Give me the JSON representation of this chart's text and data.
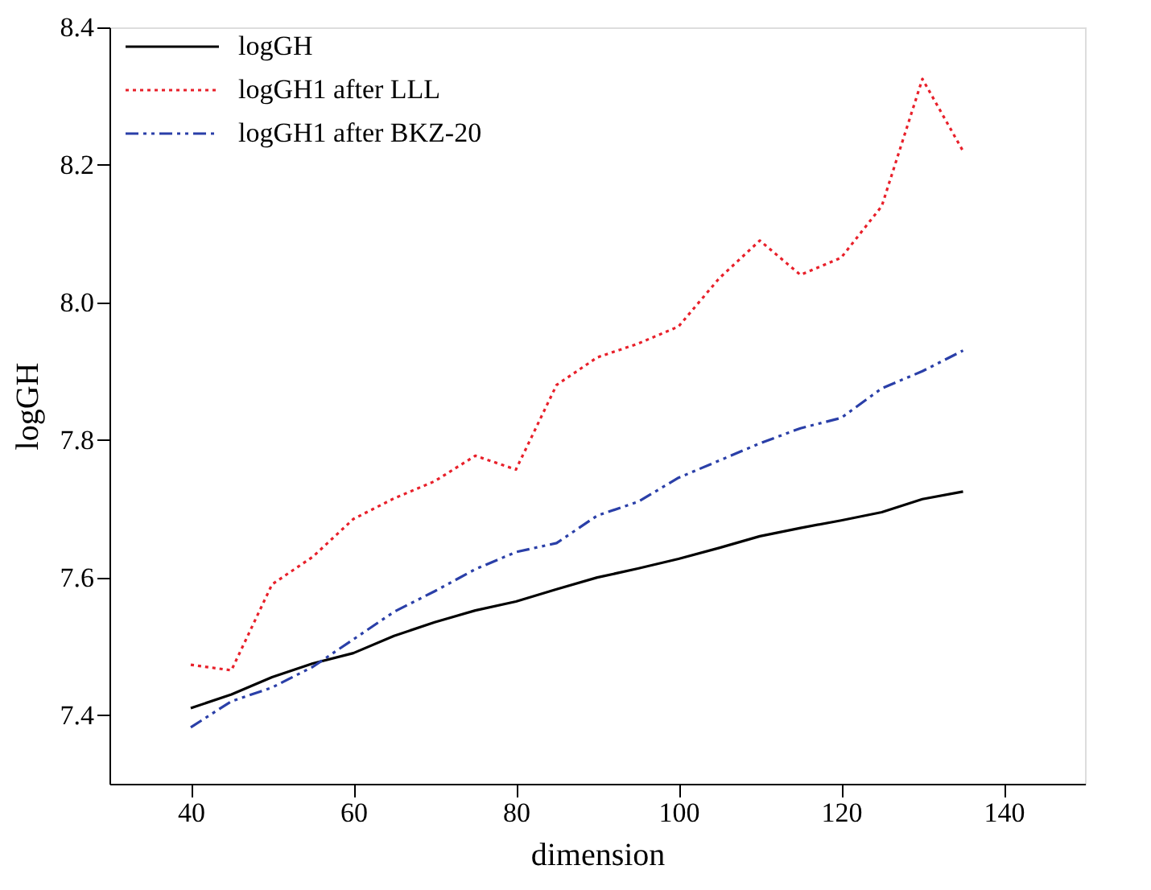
{
  "chart_data": {
    "type": "line",
    "xlabel": "dimension",
    "ylabel": "logGH",
    "x": [
      40,
      45,
      50,
      55,
      60,
      65,
      70,
      75,
      80,
      85,
      90,
      95,
      100,
      105,
      110,
      115,
      120,
      125,
      130,
      135
    ],
    "series": [
      {
        "name": "logGH",
        "color": "#000000",
        "line_style": "solid",
        "values": [
          7.41,
          7.43,
          7.455,
          7.475,
          7.49,
          7.515,
          7.535,
          7.552,
          7.565,
          7.583,
          7.6,
          7.613,
          7.627,
          7.643,
          7.66,
          7.672,
          7.683,
          7.695,
          7.714,
          7.725
        ]
      },
      {
        "name": "logGH1 after LLL",
        "color": "#e8202a",
        "line_style": "dotted",
        "values": [
          7.473,
          7.465,
          7.59,
          7.63,
          7.685,
          7.715,
          7.74,
          7.777,
          7.757,
          7.88,
          7.92,
          7.94,
          7.965,
          8.035,
          8.09,
          8.04,
          8.065,
          8.14,
          8.325,
          8.22
        ]
      },
      {
        "name": "logGH1 after BKZ-20",
        "color": "#2a3fa8",
        "line_style": "dashed",
        "values": [
          7.382,
          7.42,
          7.44,
          7.47,
          7.51,
          7.55,
          7.58,
          7.612,
          7.637,
          7.65,
          7.69,
          7.71,
          7.745,
          7.77,
          7.795,
          7.817,
          7.832,
          7.875,
          7.9,
          7.93
        ]
      }
    ],
    "xlim": [
      30,
      150
    ],
    "xticks": [
      40,
      60,
      80,
      100,
      120,
      140
    ],
    "ylim": [
      7.3,
      8.4
    ],
    "yticks": [
      7.4,
      7.6,
      7.8,
      {
        "value": 8.0,
        "label": "8.0"
      },
      8.2,
      8.4
    ],
    "grid": false,
    "legend": "top left",
    "marker": "none"
  }
}
